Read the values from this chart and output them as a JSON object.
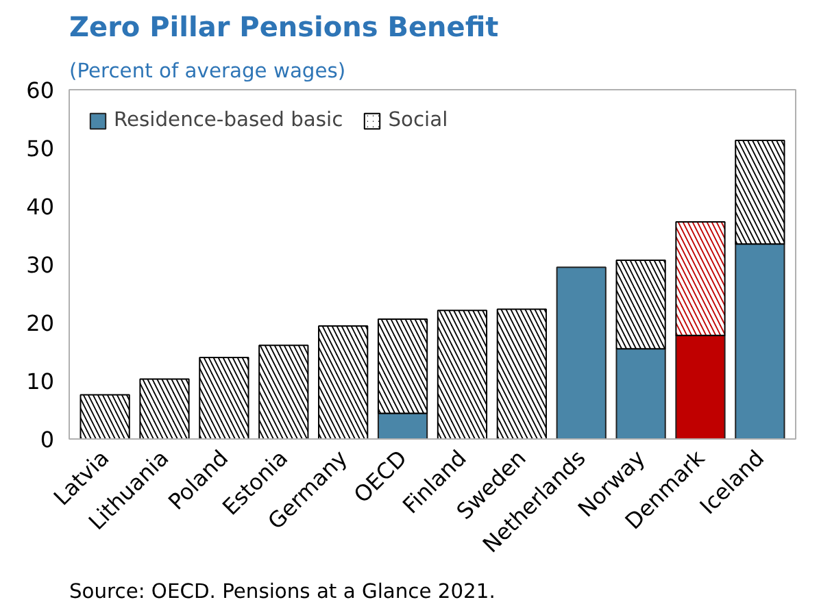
{
  "chart_data": {
    "type": "bar",
    "title": "Zero Pillar Pensions Benefit",
    "subtitle": "(Percent of average wages)",
    "categories": [
      "Latvia",
      "Lithuania",
      "Poland",
      "Estonia",
      "Germany",
      "OECD",
      "Finland",
      "Sweden",
      "Netherlands",
      "Norway",
      "Denmark",
      "Iceland"
    ],
    "stacked": true,
    "series": [
      {
        "name": "Residence-based basic",
        "color": "#4a86a8",
        "colors": [
          "#4a86a8",
          "#4a86a8",
          "#4a86a8",
          "#4a86a8",
          "#4a86a8",
          "#4a86a8",
          "#4a86a8",
          "#4a86a8",
          "#4a86a8",
          "#4a86a8",
          "#c00000",
          "#4a86a8"
        ],
        "values": [
          null,
          null,
          null,
          null,
          null,
          4.4,
          null,
          null,
          29.5,
          15.5,
          17.8,
          33.5
        ]
      },
      {
        "name": "Social",
        "color": "#000000",
        "colors": [
          "#000000",
          "#000000",
          "#000000",
          "#000000",
          "#000000",
          "#000000",
          "#000000",
          "#000000",
          "#000000",
          "#000000",
          "#c00000",
          "#000000"
        ],
        "values": [
          7.6,
          10.3,
          14.0,
          16.1,
          19.4,
          16.2,
          22.1,
          22.3,
          null,
          15.2,
          19.5,
          17.8
        ]
      }
    ],
    "ylim": [
      0,
      60
    ],
    "yticks": [
      0,
      10,
      20,
      30,
      40,
      50,
      60
    ],
    "grid": false,
    "legend": "top left",
    "annotations": [
      "Source: OECD. Pensions at a Glance 2021."
    ]
  }
}
